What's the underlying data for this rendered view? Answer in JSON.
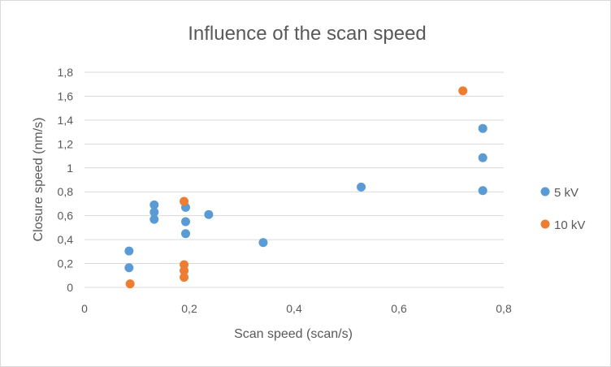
{
  "chart_data": {
    "type": "scatter",
    "title": "Influence of the scan speed",
    "xlabel": "Scan speed (scan/s)",
    "ylabel": "Closure speed (nm/s)",
    "xlim": [
      0,
      0.8
    ],
    "ylim": [
      0,
      1.8
    ],
    "x_ticks": [
      {
        "value": 0,
        "label": "0"
      },
      {
        "value": 0.2,
        "label": "0,2"
      },
      {
        "value": 0.4,
        "label": "0,4"
      },
      {
        "value": 0.6,
        "label": "0,6"
      },
      {
        "value": 0.8,
        "label": "0,8"
      }
    ],
    "y_ticks": [
      {
        "value": 0,
        "label": "0"
      },
      {
        "value": 0.2,
        "label": "0,2"
      },
      {
        "value": 0.4,
        "label": "0,4"
      },
      {
        "value": 0.6,
        "label": "0,6"
      },
      {
        "value": 0.8,
        "label": "0,8"
      },
      {
        "value": 1.0,
        "label": "1"
      },
      {
        "value": 1.2,
        "label": "1,2"
      },
      {
        "value": 1.4,
        "label": "1,4"
      },
      {
        "value": 1.6,
        "label": "1,6"
      },
      {
        "value": 1.8,
        "label": "1,8"
      }
    ],
    "grid": "horizontal",
    "legend_position": "right",
    "series": [
      {
        "name": "5 kV",
        "color": "#5b9bd5",
        "points": [
          {
            "x": 0.085,
            "y": 0.305
          },
          {
            "x": 0.085,
            "y": 0.165
          },
          {
            "x": 0.133,
            "y": 0.69
          },
          {
            "x": 0.133,
            "y": 0.63
          },
          {
            "x": 0.133,
            "y": 0.57
          },
          {
            "x": 0.193,
            "y": 0.67
          },
          {
            "x": 0.193,
            "y": 0.55
          },
          {
            "x": 0.193,
            "y": 0.45
          },
          {
            "x": 0.237,
            "y": 0.61
          },
          {
            "x": 0.341,
            "y": 0.375
          },
          {
            "x": 0.528,
            "y": 0.84
          },
          {
            "x": 0.76,
            "y": 1.33
          },
          {
            "x": 0.76,
            "y": 1.085
          },
          {
            "x": 0.76,
            "y": 0.81
          }
        ]
      },
      {
        "name": "10 kV",
        "color": "#ed7d31",
        "points": [
          {
            "x": 0.087,
            "y": 0.03
          },
          {
            "x": 0.19,
            "y": 0.72
          },
          {
            "x": 0.19,
            "y": 0.19
          },
          {
            "x": 0.19,
            "y": 0.14
          },
          {
            "x": 0.19,
            "y": 0.085
          },
          {
            "x": 0.722,
            "y": 1.645
          }
        ]
      }
    ]
  }
}
